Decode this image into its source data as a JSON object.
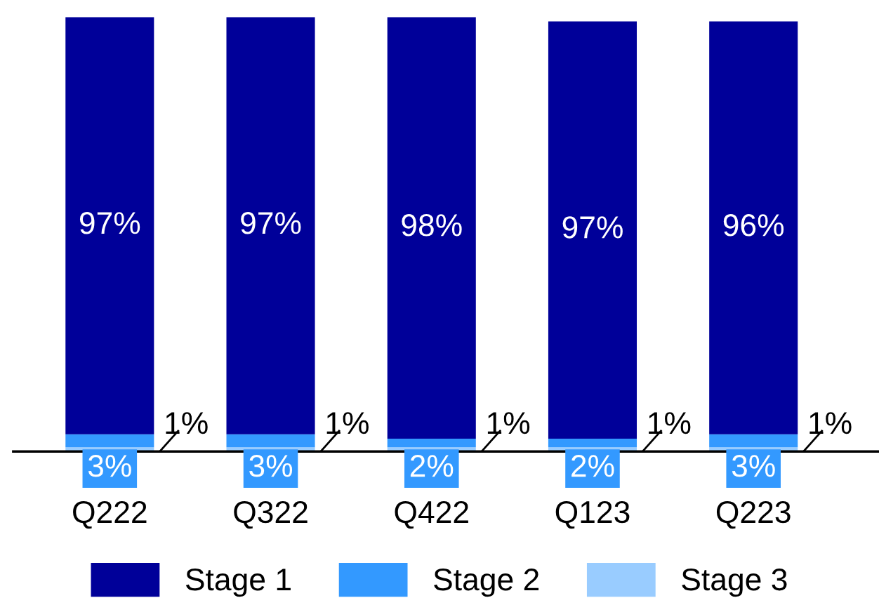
{
  "chart_data": {
    "type": "bar",
    "stacked": true,
    "categories": [
      "Q222",
      "Q322",
      "Q422",
      "Q123",
      "Q223"
    ],
    "series": [
      {
        "name": "Stage 3",
        "color": "#99ccff",
        "values": [
          1,
          1,
          1,
          1,
          1
        ],
        "value_labels": [
          "1%",
          "1%",
          "1%",
          "1%",
          "1%"
        ]
      },
      {
        "name": "Stage 2",
        "color": "#3399ff",
        "values": [
          3,
          3,
          2,
          2,
          3
        ],
        "value_labels": [
          "3%",
          "3%",
          "2%",
          "2%",
          "3%"
        ]
      },
      {
        "name": "Stage 1",
        "color": "#000099",
        "values": [
          97,
          97,
          98,
          97,
          96
        ],
        "value_labels": [
          "97%",
          "97%",
          "98%",
          "97%",
          "96%"
        ]
      }
    ],
    "legend": "bottom"
  }
}
